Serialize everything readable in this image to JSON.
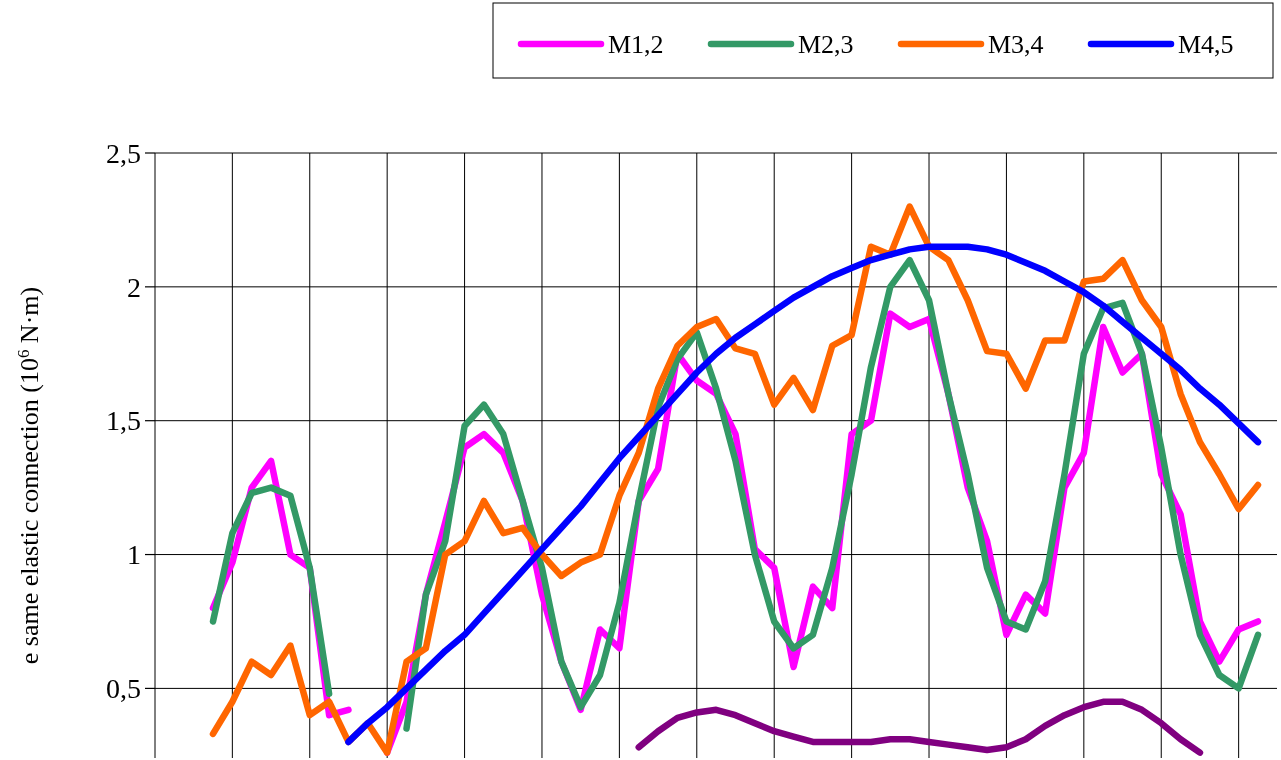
{
  "chart_data": {
    "type": "line",
    "ylabel": "e same elastic connection (10$^{6}$ N·m)",
    "categories": [
      null,
      null,
      null,
      null,
      null,
      null,
      null,
      null,
      null,
      null,
      null,
      null,
      null,
      null,
      null,
      null,
      null,
      null,
      null,
      null,
      null,
      null,
      null,
      null,
      null,
      null,
      null,
      null,
      null,
      null,
      null,
      null,
      null,
      null,
      null,
      null,
      null,
      null,
      null,
      null,
      null,
      null,
      null,
      null,
      null,
      null,
      null,
      null,
      null,
      null,
      null,
      null,
      null,
      null,
      null
    ],
    "ylim": [
      0.24,
      2.5
    ],
    "yticks": [
      {
        "value": 0.5,
        "label": "0,5"
      },
      1,
      {
        "value": 1.5,
        "label": "1,5"
      },
      2,
      {
        "value": 2.5,
        "label": "2,5"
      }
    ],
    "grid": true,
    "legend": "top right",
    "series": [
      {
        "name": "M1,2",
        "color": "#ff00ff",
        "values": [
          0.8,
          0.97,
          1.25,
          1.35,
          1.0,
          0.95,
          0.4,
          0.42,
          null,
          0.26,
          0.45,
          0.85,
          1.12,
          1.4,
          1.45,
          1.38,
          1.2,
          0.85,
          0.6,
          0.42,
          0.72,
          0.65,
          1.2,
          1.32,
          1.75,
          1.65,
          1.6,
          1.45,
          1.02,
          0.95,
          0.58,
          0.88,
          0.8,
          1.45,
          1.5,
          1.9,
          1.85,
          1.88,
          1.6,
          1.25,
          1.05,
          0.7,
          0.85,
          0.78,
          1.25,
          1.38,
          1.85,
          1.68,
          1.75,
          1.3,
          1.15,
          0.75,
          0.6,
          0.72,
          0.75
        ]
      },
      {
        "name": "M2,3",
        "color": "#339966",
        "values": [
          0.75,
          1.08,
          1.23,
          1.25,
          1.22,
          0.95,
          0.48,
          null,
          null,
          null,
          0.35,
          0.85,
          1.05,
          1.48,
          1.56,
          1.45,
          1.2,
          0.95,
          0.6,
          0.43,
          0.55,
          0.82,
          1.2,
          1.55,
          1.73,
          1.83,
          1.62,
          1.35,
          1.0,
          0.75,
          0.65,
          0.7,
          0.95,
          1.3,
          1.7,
          2.0,
          2.1,
          1.95,
          1.6,
          1.3,
          0.95,
          0.75,
          0.72,
          0.9,
          1.3,
          1.75,
          1.92,
          1.94,
          1.75,
          1.4,
          1.0,
          0.7,
          0.55,
          0.5,
          0.7
        ]
      },
      {
        "name": "M3,4",
        "color": "#ff6600",
        "values": [
          0.33,
          0.45,
          0.6,
          0.55,
          0.66,
          0.4,
          0.45,
          0.3,
          0.37,
          0.26,
          0.6,
          0.65,
          1.0,
          1.05,
          1.2,
          1.08,
          1.1,
          1.0,
          0.92,
          0.97,
          1.0,
          1.22,
          1.38,
          1.62,
          1.78,
          1.85,
          1.88,
          1.77,
          1.75,
          1.56,
          1.66,
          1.54,
          1.78,
          1.82,
          2.15,
          2.12,
          2.3,
          2.15,
          2.1,
          1.95,
          1.76,
          1.75,
          1.62,
          1.8,
          1.8,
          2.02,
          2.03,
          2.1,
          1.95,
          1.85,
          1.6,
          1.42,
          1.3,
          1.17,
          1.26
        ]
      },
      {
        "name": "M4,5",
        "color": "#0000ff",
        "values": [
          null,
          null,
          null,
          null,
          null,
          null,
          null,
          0.3,
          0.37,
          0.43,
          0.5,
          0.57,
          0.64,
          0.7,
          0.78,
          0.86,
          0.94,
          1.02,
          1.1,
          1.18,
          1.27,
          1.36,
          1.44,
          1.52,
          1.6,
          1.68,
          1.75,
          1.81,
          1.86,
          1.91,
          1.96,
          2.0,
          2.04,
          2.07,
          2.1,
          2.12,
          2.14,
          2.15,
          2.15,
          2.15,
          2.14,
          2.12,
          2.09,
          2.06,
          2.02,
          1.98,
          1.93,
          1.87,
          1.81,
          1.75,
          1.69,
          1.62,
          1.56,
          1.49,
          1.42
        ]
      },
      {
        "color": "#800080",
        "values": [
          null,
          null,
          null,
          null,
          null,
          null,
          null,
          null,
          null,
          null,
          null,
          null,
          null,
          null,
          null,
          null,
          null,
          null,
          null,
          null,
          null,
          null,
          0.28,
          0.34,
          0.39,
          0.41,
          0.42,
          0.4,
          0.37,
          0.34,
          0.32,
          0.3,
          0.3,
          0.3,
          0.3,
          0.31,
          0.31,
          0.3,
          0.29,
          0.28,
          0.27,
          0.28,
          0.31,
          0.36,
          0.4,
          0.43,
          0.45,
          0.45,
          0.42,
          0.37,
          0.31,
          0.26,
          null,
          null,
          null
        ]
      }
    ]
  }
}
